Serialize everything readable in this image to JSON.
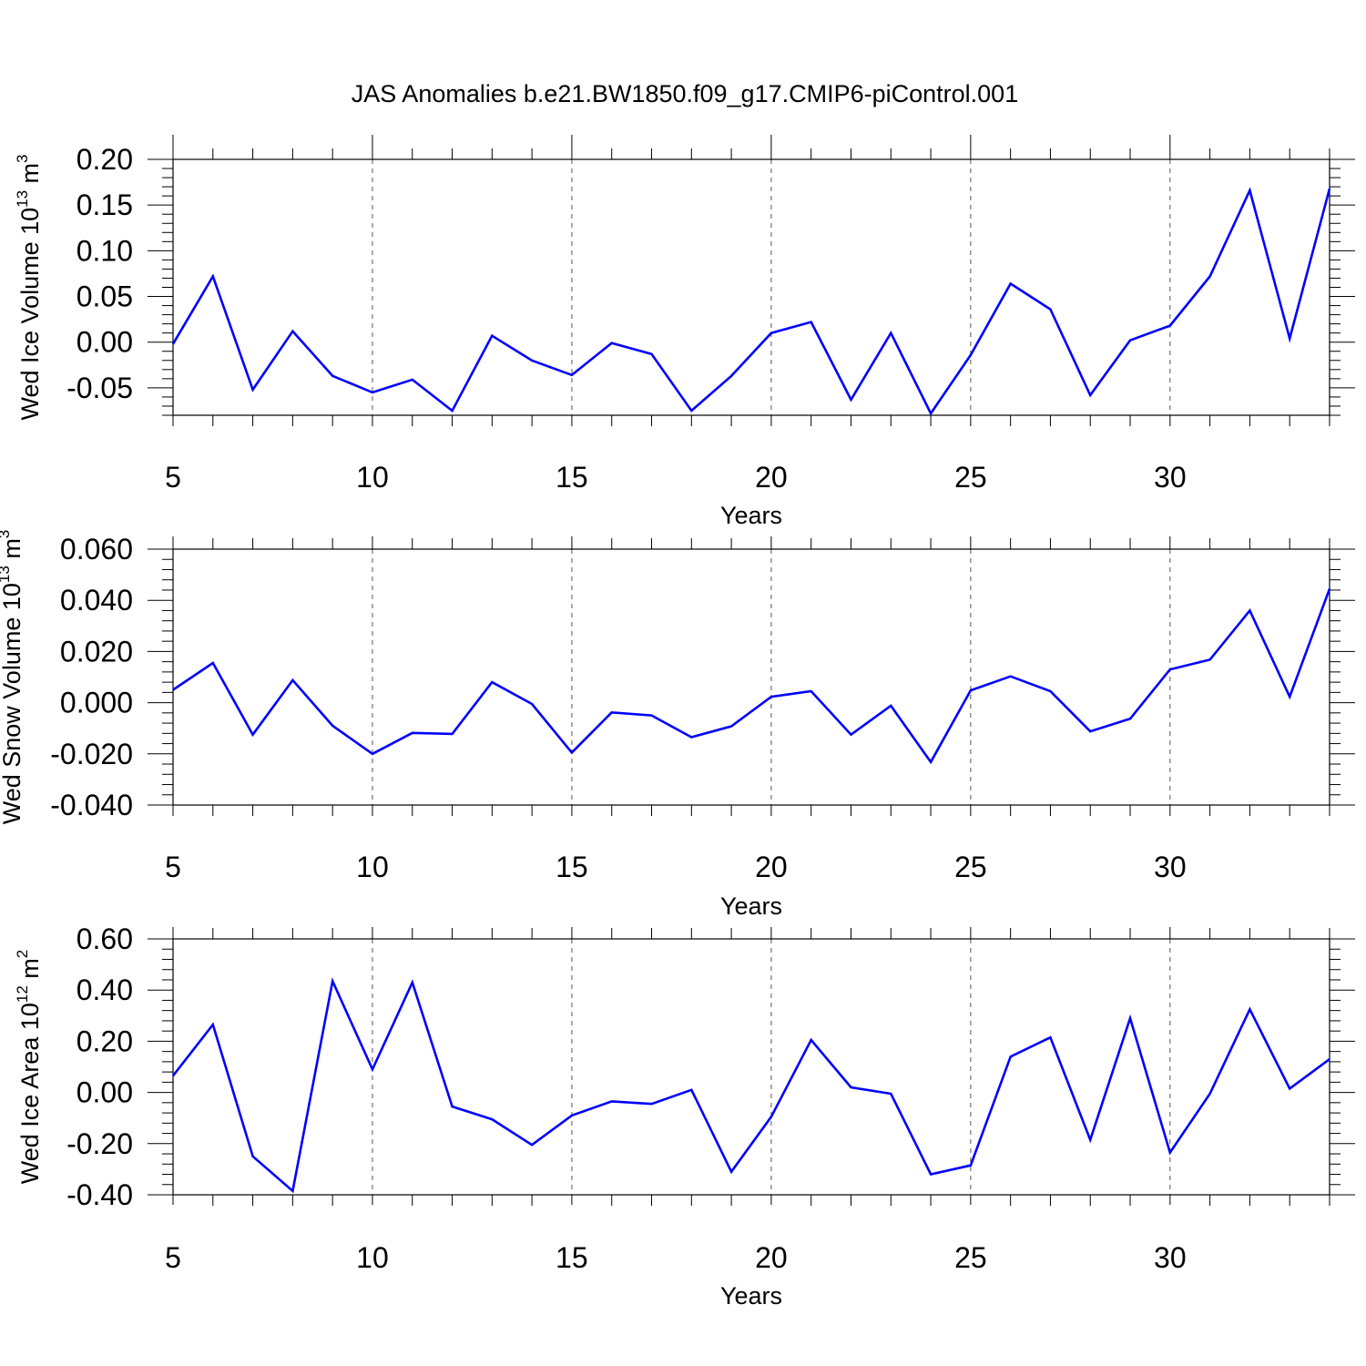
{
  "title": "JAS Anomalies b.e21.BW1850.f09_g17.CMIP6-piControl.001",
  "line_color": "#0000ff",
  "chart_data": [
    {
      "type": "line",
      "title": "JAS Anomalies b.e21.BW1850.f09_g17.CMIP6-piControl.001",
      "xlabel": "Years",
      "ylabel": {
        "base": "Wed Ice Volume 10",
        "exp": "13",
        "unit": " m",
        "unit_exp": "3"
      },
      "xlim": [
        5,
        34
      ],
      "ylim": [
        -0.08,
        0.2
      ],
      "xticks": [
        "5",
        "10",
        "15",
        "20",
        "25",
        "30"
      ],
      "yticks": [
        "0.20",
        "0.15",
        "0.10",
        "0.05",
        "0.00",
        "-0.05"
      ],
      "ytick_values": [
        0.2,
        0.15,
        0.1,
        0.05,
        0.0,
        -0.05
      ],
      "grid_x": [
        10,
        15,
        20,
        25,
        30
      ],
      "x": [
        5,
        6,
        7,
        8,
        9,
        10,
        11,
        12,
        13,
        14,
        15,
        16,
        17,
        18,
        19,
        20,
        21,
        22,
        23,
        24,
        25,
        26,
        27,
        28,
        29,
        30,
        31,
        32,
        33,
        34
      ],
      "values": [
        -0.002,
        0.072,
        -0.052,
        0.012,
        -0.037,
        -0.055,
        -0.041,
        -0.075,
        0.007,
        -0.02,
        -0.036,
        -0.001,
        -0.013,
        -0.075,
        -0.037,
        0.01,
        0.022,
        -0.063,
        0.01,
        -0.078,
        -0.014,
        0.064,
        0.036,
        -0.058,
        0.002,
        0.018,
        0.072,
        0.166,
        0.004,
        0.168
      ]
    },
    {
      "type": "line",
      "xlabel": "Years",
      "ylabel": {
        "base": "Wed Snow Volume 10",
        "exp": "13",
        "unit": " m",
        "unit_exp": "3"
      },
      "xlim": [
        5,
        34
      ],
      "ylim": [
        -0.04,
        0.06
      ],
      "xticks": [
        "5",
        "10",
        "15",
        "20",
        "25",
        "30"
      ],
      "yticks": [
        "0.060",
        "0.040",
        "0.020",
        "0.000",
        "-0.020",
        "-0.040"
      ],
      "ytick_values": [
        0.06,
        0.04,
        0.02,
        0.0,
        -0.02,
        -0.04
      ],
      "grid_x": [
        10,
        15,
        20,
        25,
        30
      ],
      "x": [
        5,
        6,
        7,
        8,
        9,
        10,
        11,
        12,
        13,
        14,
        15,
        16,
        17,
        18,
        19,
        20,
        21,
        22,
        23,
        24,
        25,
        26,
        27,
        28,
        29,
        30,
        31,
        32,
        33,
        34
      ],
      "values": [
        0.005,
        0.0155,
        -0.0125,
        0.0088,
        -0.009,
        -0.02,
        -0.0118,
        -0.0122,
        0.008,
        -0.0005,
        -0.0195,
        -0.0038,
        -0.005,
        -0.0135,
        -0.0092,
        0.0023,
        0.0045,
        -0.0125,
        -0.0012,
        -0.0232,
        0.0048,
        0.0103,
        0.0045,
        -0.0112,
        -0.0063,
        0.013,
        0.0168,
        0.036,
        0.0023,
        0.0445
      ]
    },
    {
      "type": "line",
      "xlabel": "Years",
      "ylabel": {
        "base": "Wed Ice Area 10",
        "exp": "12",
        "unit": " m",
        "unit_exp": "2"
      },
      "xlim": [
        5,
        34
      ],
      "ylim": [
        -0.4,
        0.6
      ],
      "xticks": [
        "5",
        "10",
        "15",
        "20",
        "25",
        "30"
      ],
      "yticks": [
        "0.60",
        "0.40",
        "0.20",
        "0.00",
        "-0.20",
        "-0.40"
      ],
      "ytick_values": [
        0.6,
        0.4,
        0.2,
        0.0,
        -0.2,
        -0.4
      ],
      "grid_x": [
        10,
        15,
        20,
        25,
        30
      ],
      "x": [
        5,
        6,
        7,
        8,
        9,
        10,
        11,
        12,
        13,
        14,
        15,
        16,
        17,
        18,
        19,
        20,
        21,
        22,
        23,
        24,
        25,
        26,
        27,
        28,
        29,
        30,
        31,
        32,
        33,
        34
      ],
      "values": [
        0.065,
        0.265,
        -0.25,
        -0.385,
        0.435,
        0.09,
        0.43,
        -0.055,
        -0.105,
        -0.205,
        -0.09,
        -0.035,
        -0.045,
        0.01,
        -0.31,
        -0.095,
        0.205,
        0.02,
        -0.005,
        -0.32,
        -0.285,
        0.14,
        0.215,
        -0.185,
        0.29,
        -0.235,
        -0.005,
        0.325,
        0.015,
        0.13
      ]
    }
  ]
}
